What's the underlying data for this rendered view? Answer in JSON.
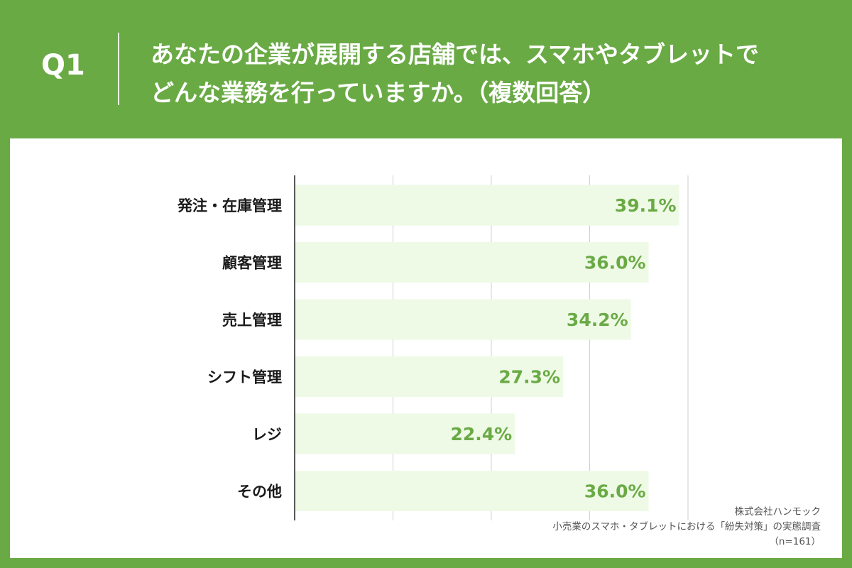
{
  "header": {
    "q_label": "Q1",
    "question_line1": "あなたの企業が展開する店舗では、スマホやタブレットで",
    "question_line2": "どんな業務を行っていますか。（複数回答）"
  },
  "source": {
    "company": "株式会社ハンモック",
    "survey": "小売業のスマホ・タブレットにおける「紛失対策」の実態調査",
    "sample": "（n=161）"
  },
  "colors": {
    "header_bg": "#6aaa45",
    "bar_fill": "#eefae6",
    "value_text": "#6aaa45",
    "category_text": "#1a1a1a"
  },
  "chart_data": {
    "type": "bar",
    "orientation": "horizontal",
    "categories": [
      "発注・在庫管理",
      "顧客管理",
      "売上管理",
      "シフト管理",
      "レジ",
      "その他"
    ],
    "values": [
      39.1,
      36.0,
      34.2,
      27.3,
      22.4,
      36.0
    ],
    "value_labels": [
      "39.1%",
      "36.0%",
      "34.2%",
      "27.3%",
      "22.4%",
      "36.0%"
    ],
    "xlim": [
      0,
      40
    ],
    "gridlines_at": [
      10,
      20,
      30,
      40
    ],
    "grid": true,
    "legend": "none"
  }
}
